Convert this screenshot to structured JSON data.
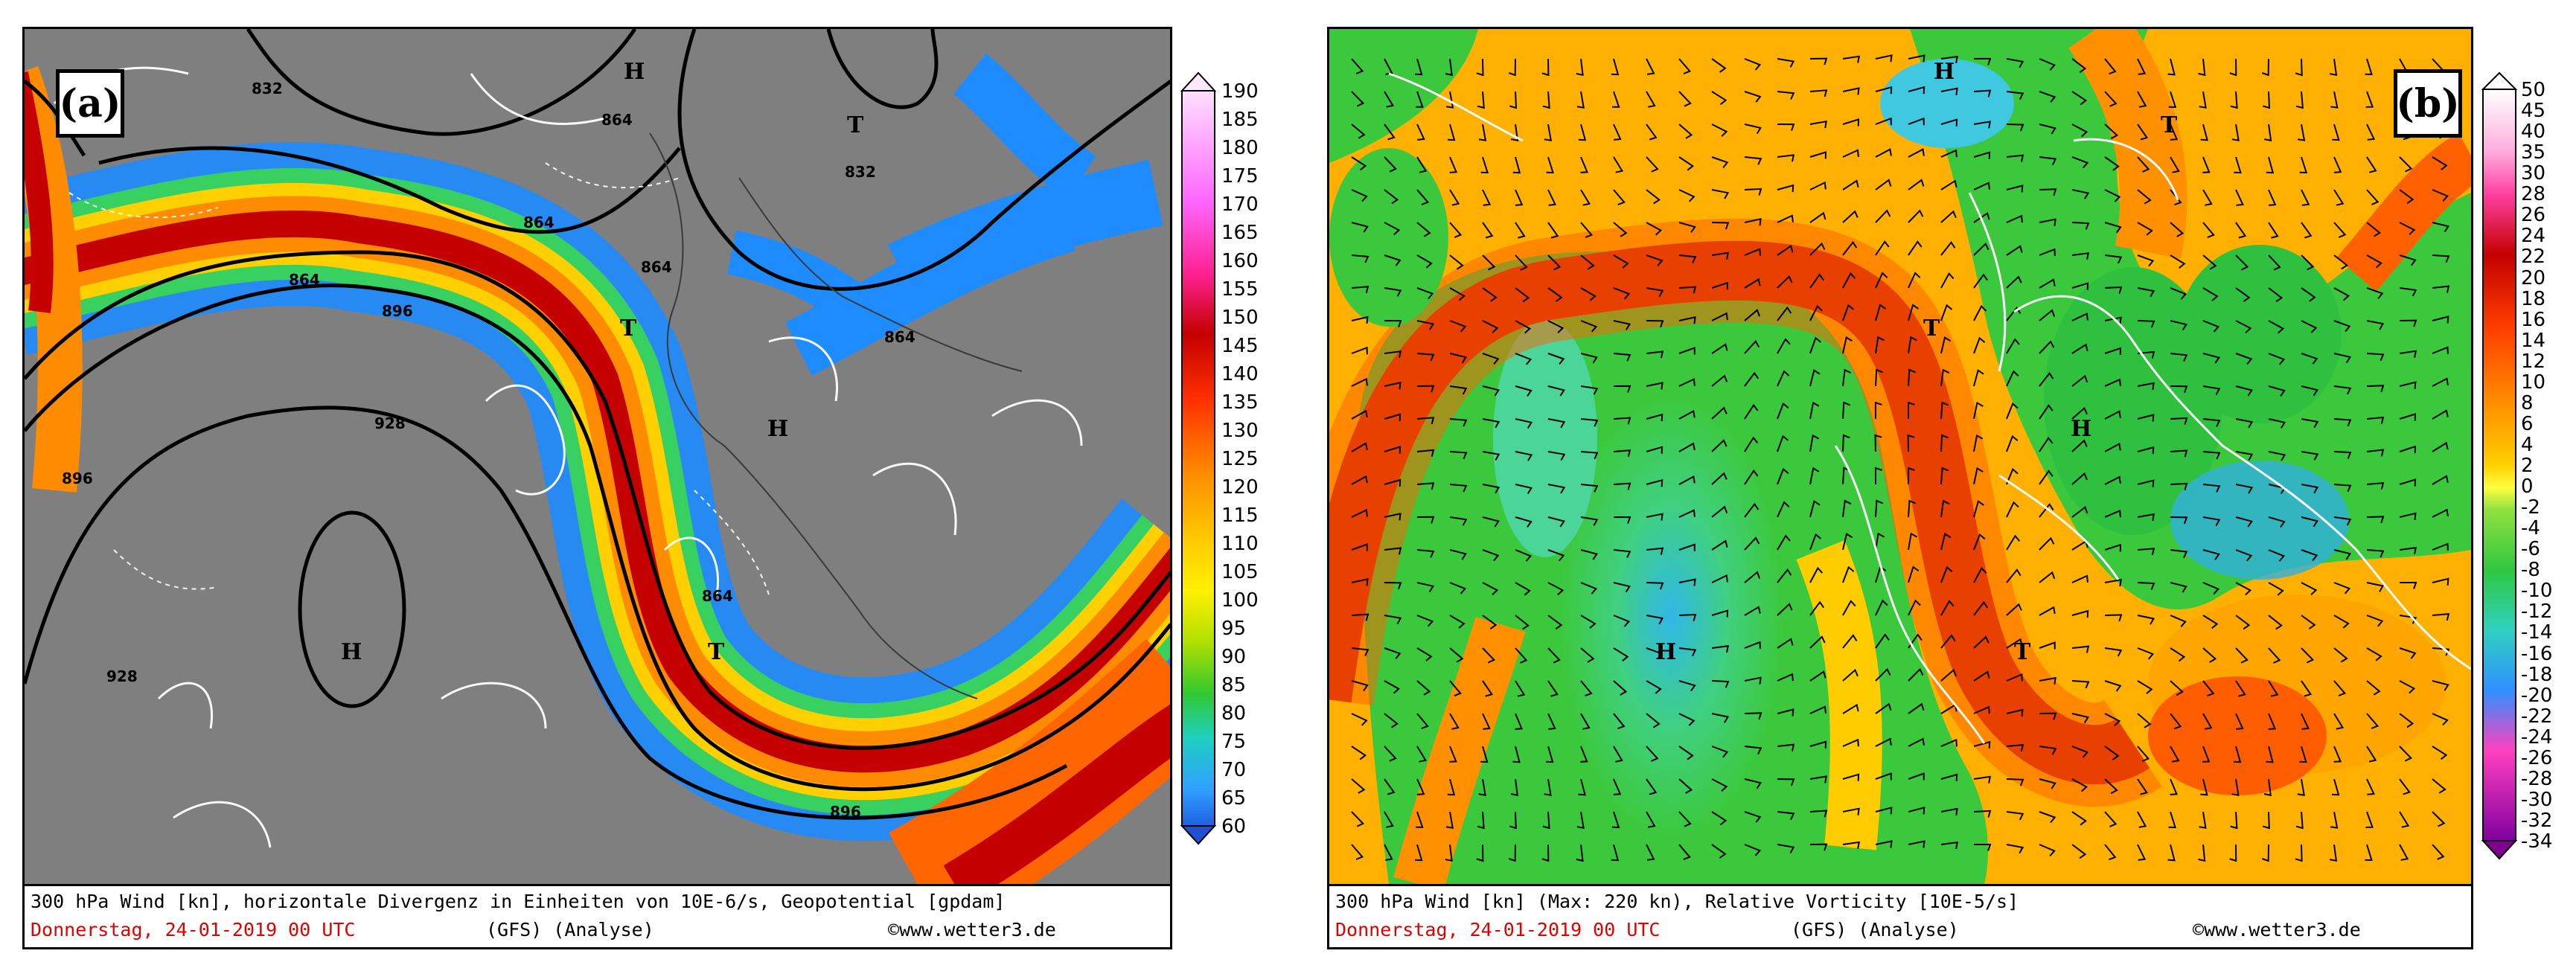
{
  "panel_a": {
    "tag": "(a)",
    "caption_line1": "300 hPa Wind [kn], horizontale Divergenz in Einheiten von 10E-6/s, Geopotential [gpdam]",
    "caption_date": "Donnerstag, 24-01-2019  00 UTC",
    "caption_model": "(GFS)  (Analyse)",
    "caption_site": "www.wetter3.de",
    "colorbar_labels": [
      "190",
      "185",
      "180",
      "175",
      "170",
      "165",
      "160",
      "155",
      "150",
      "145",
      "140",
      "135",
      "130",
      "125",
      "120",
      "115",
      "110",
      "105",
      "100",
      "95",
      "90",
      "85",
      "80",
      "75",
      "70",
      "65",
      "60"
    ],
    "contour_labels": [
      "832",
      "864",
      "864",
      "864",
      "864",
      "896",
      "928",
      "896",
      "928",
      "864",
      "896",
      "864",
      "832"
    ],
    "pressure_centers": [
      "H",
      "T",
      "H",
      "T",
      "H",
      "T"
    ]
  },
  "panel_b": {
    "tag": "(b)",
    "caption_line1": "300 hPa Wind [kn] (Max: 220 kn), Relative Vorticity [10E-5/s]",
    "caption_date": "Donnerstag, 24-01-2019  00 UTC",
    "caption_model": "(GFS)  (Analyse)",
    "caption_site": "www.wetter3.de",
    "colorbar_labels": [
      "50",
      "45",
      "40",
      "35",
      "30",
      "28",
      "26",
      "24",
      "22",
      "20",
      "18",
      "16",
      "14",
      "12",
      "10",
      "8",
      "6",
      "4",
      "2",
      "0",
      "-2",
      "-4",
      "-6",
      "-8",
      "-10",
      "-12",
      "-14",
      "-16",
      "-18",
      "-20",
      "-22",
      "-24",
      "-26",
      "-28",
      "-30",
      "-32",
      "-34"
    ],
    "pressure_centers": [
      "H",
      "T",
      "T",
      "H",
      "H",
      "T"
    ]
  },
  "colors": {
    "map_a_background": "#7f7f7f",
    "jet_core": "#c40000",
    "jet_orange": "#ff8c00",
    "jet_yellow": "#ffd000",
    "jet_blue": "#1e8cff",
    "vorticity_green": "#3cc83c",
    "vorticity_orange": "#ff9900",
    "caption_red": "#e00000"
  }
}
